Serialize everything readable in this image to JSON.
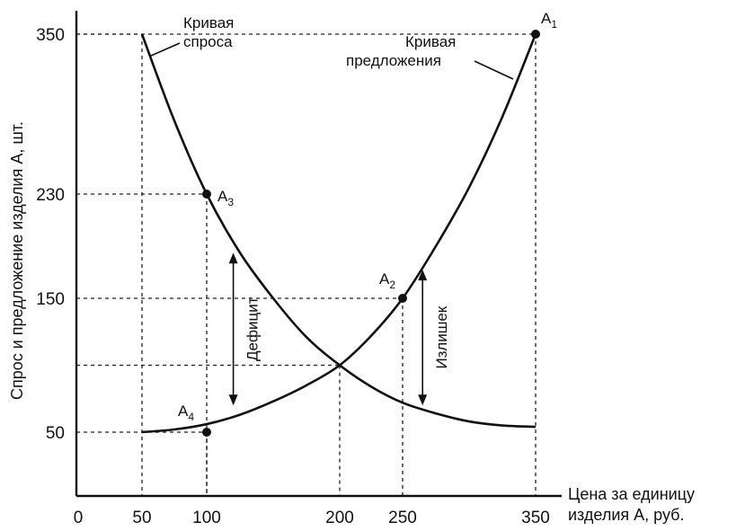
{
  "chart_data": {
    "type": "line",
    "xlabel": [
      "Цена за единицу",
      "изделия А, руб."
    ],
    "ylabel": "Спрос и предложение изделия А, шт.",
    "x_ticks": [
      "0",
      "50",
      "100",
      "200",
      "250",
      "350"
    ],
    "y_ticks": [
      "350",
      "230",
      "150",
      "50"
    ],
    "xlim": [
      0,
      350
    ],
    "ylim": [
      0,
      350
    ],
    "grid": false,
    "series": [
      {
        "name": "Кривая спроса",
        "label_lines": [
          "Кривая",
          "спроса"
        ],
        "x": [
          50,
          75,
          100,
          125,
          150,
          175,
          200,
          225,
          250,
          275,
          300,
          325,
          350
        ],
        "y": [
          350,
          285,
          230,
          185,
          150,
          121,
          100,
          84,
          72,
          64,
          58,
          55,
          54
        ]
      },
      {
        "name": "Кривая предложения",
        "label_lines": [
          "Кривая",
          "предложения"
        ],
        "x": [
          50,
          75,
          100,
          125,
          150,
          175,
          200,
          225,
          250,
          275,
          300,
          325,
          350
        ],
        "y": [
          50,
          52,
          56,
          63,
          73,
          85,
          100,
          122,
          150,
          190,
          235,
          288,
          350
        ]
      }
    ],
    "points": [
      {
        "label": "A",
        "sub": "1",
        "x": 350,
        "y": 350
      },
      {
        "label": "A",
        "sub": "2",
        "x": 250,
        "y": 150
      },
      {
        "label": "A",
        "sub": "3",
        "x": 100,
        "y": 230
      },
      {
        "label": "A",
        "sub": "4",
        "x": 100,
        "y": 50
      }
    ],
    "guides": [
      {
        "x": 50,
        "y": 350
      },
      {
        "x": 100,
        "y": 230
      },
      {
        "x": 250,
        "y": 150
      },
      {
        "x": 350,
        "y": 350
      },
      {
        "x": 200,
        "y": 100
      },
      {
        "x": 100,
        "y": 50
      }
    ],
    "annotations": [
      {
        "text": "Дефицит",
        "x": 120,
        "y_from": 70,
        "y_to": 185
      },
      {
        "text": "Излишек",
        "x": 265,
        "y_from": 70,
        "y_to": 172
      }
    ]
  }
}
